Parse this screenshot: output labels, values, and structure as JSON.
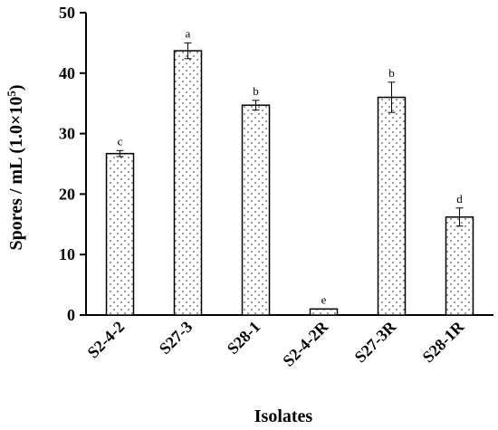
{
  "chart_data": {
    "type": "bar",
    "categories": [
      "S2-4-2",
      "S27-3",
      "S28-1",
      "S2-4-2R",
      "S27-3R",
      "S28-1R"
    ],
    "values": [
      26.7,
      43.7,
      34.7,
      1.0,
      36.0,
      16.2
    ],
    "errors": [
      0.5,
      1.3,
      0.8,
      0.0,
      2.5,
      1.5
    ],
    "significance": [
      "c",
      "a",
      "b",
      "e",
      "b",
      "d"
    ],
    "xlabel": "Isolates",
    "ylabel_main": "Spores / mL (1.0×10",
    "ylabel_sup": "5",
    "ylabel_tail": ")",
    "ylim": [
      0,
      50
    ],
    "yticks": [
      0,
      10,
      20,
      30,
      40,
      50
    ],
    "ytick_labels": [
      "0",
      "10",
      "20",
      "30",
      "40",
      "50"
    ],
    "grid": false,
    "bar_fill": "dotted",
    "colors": {
      "bar_dot": "#555555",
      "bar_bg": "#ffffff",
      "axis": "#000000"
    }
  }
}
